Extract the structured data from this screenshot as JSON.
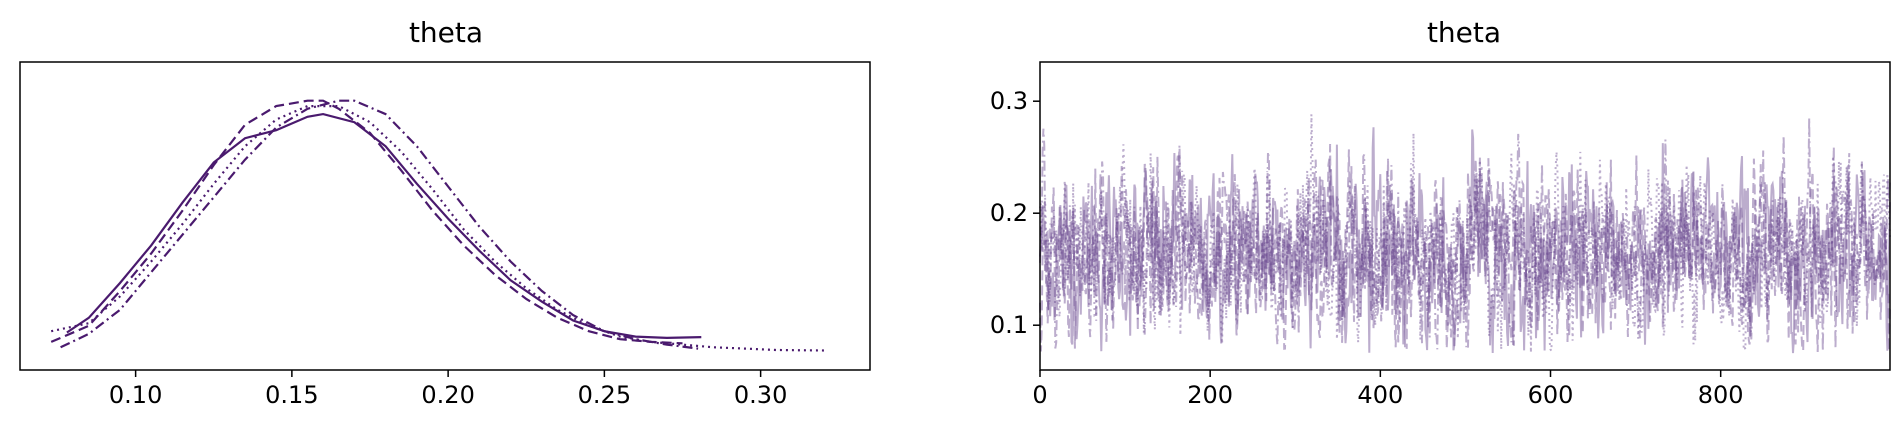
{
  "chart_data": [
    {
      "type": "line",
      "title": "theta",
      "xlabel": "",
      "ylabel": "",
      "xlim": [
        0.063,
        0.335
      ],
      "x_ticks": [
        0.1,
        0.15,
        0.2,
        0.25,
        0.3
      ],
      "x_tick_labels": [
        "0.10",
        "0.15",
        "0.20",
        "0.25",
        "0.30"
      ],
      "y_ticks": [],
      "grid": false,
      "color": "#4a1a6e",
      "series": [
        {
          "linestyle": "solid",
          "x": [
            0.078,
            0.085,
            0.095,
            0.105,
            0.115,
            0.125,
            0.135,
            0.145,
            0.155,
            0.16,
            0.17,
            0.18,
            0.19,
            0.2,
            0.21,
            0.22,
            0.23,
            0.24,
            0.25,
            0.26,
            0.27,
            0.281
          ],
          "y": [
            0.095,
            0.15,
            0.28,
            0.42,
            0.58,
            0.73,
            0.82,
            0.85,
            0.9,
            0.91,
            0.88,
            0.79,
            0.65,
            0.52,
            0.4,
            0.29,
            0.21,
            0.14,
            0.1,
            0.08,
            0.075,
            0.078
          ]
        },
        {
          "linestyle": "dashed",
          "x": [
            0.073,
            0.085,
            0.095,
            0.105,
            0.115,
            0.125,
            0.135,
            0.145,
            0.155,
            0.16,
            0.165,
            0.175,
            0.185,
            0.195,
            0.205,
            0.215,
            0.225,
            0.235,
            0.245,
            0.255,
            0.265,
            0.275
          ],
          "y": [
            0.06,
            0.12,
            0.25,
            0.39,
            0.55,
            0.72,
            0.87,
            0.94,
            0.96,
            0.96,
            0.93,
            0.84,
            0.7,
            0.55,
            0.42,
            0.31,
            0.22,
            0.15,
            0.1,
            0.07,
            0.06,
            0.055
          ]
        },
        {
          "linestyle": "dotted",
          "x": [
            0.073,
            0.085,
            0.095,
            0.105,
            0.115,
            0.125,
            0.135,
            0.145,
            0.155,
            0.165,
            0.175,
            0.185,
            0.195,
            0.205,
            0.215,
            0.225,
            0.235,
            0.245,
            0.255,
            0.265,
            0.275,
            0.285,
            0.295,
            0.305,
            0.321
          ],
          "y": [
            0.1,
            0.13,
            0.23,
            0.36,
            0.5,
            0.65,
            0.79,
            0.89,
            0.94,
            0.94,
            0.88,
            0.77,
            0.63,
            0.48,
            0.36,
            0.26,
            0.18,
            0.12,
            0.08,
            0.06,
            0.05,
            0.04,
            0.035,
            0.03,
            0.028
          ]
        },
        {
          "linestyle": "dashdot",
          "x": [
            0.076,
            0.085,
            0.095,
            0.105,
            0.115,
            0.125,
            0.135,
            0.145,
            0.155,
            0.165,
            0.17,
            0.18,
            0.19,
            0.2,
            0.21,
            0.22,
            0.23,
            0.24,
            0.25,
            0.26,
            0.27,
            0.28
          ],
          "y": [
            0.04,
            0.09,
            0.18,
            0.32,
            0.46,
            0.6,
            0.74,
            0.86,
            0.93,
            0.96,
            0.96,
            0.91,
            0.79,
            0.64,
            0.49,
            0.36,
            0.25,
            0.16,
            0.1,
            0.07,
            0.05,
            0.035
          ]
        }
      ]
    },
    {
      "type": "line",
      "title": "theta",
      "xlabel": "",
      "ylabel": "",
      "xlim": [
        0,
        999
      ],
      "ylim": [
        0.06,
        0.335
      ],
      "x_ticks": [
        0,
        200,
        400,
        600,
        800
      ],
      "x_tick_labels": [
        "0",
        "200",
        "400",
        "600",
        "800"
      ],
      "y_ticks": [
        0.1,
        0.2,
        0.3
      ],
      "y_tick_labels": [
        "0.1",
        "0.2",
        "0.3"
      ],
      "grid": false,
      "color": "#6a4a90",
      "draws_per_chain": 1000,
      "series": [
        {
          "linestyle": "solid",
          "x": [
            0,
            100,
            200,
            300,
            400,
            500,
            600,
            700,
            800,
            900,
            999
          ],
          "y": [
            0.165,
            0.163,
            0.168,
            0.162,
            0.165,
            0.16,
            0.166,
            0.162,
            0.167,
            0.161,
            0.165
          ]
        },
        {
          "linestyle": "dashed",
          "x": [
            0,
            100,
            200,
            300,
            400,
            500,
            600,
            700,
            800,
            900,
            999
          ],
          "y": [
            0.16,
            0.164,
            0.158,
            0.163,
            0.161,
            0.165,
            0.159,
            0.163,
            0.16,
            0.164,
            0.162
          ]
        },
        {
          "linestyle": "dotted",
          "x": [
            0,
            100,
            200,
            300,
            400,
            500,
            600,
            700,
            800,
            900,
            999
          ],
          "y": [
            0.162,
            0.16,
            0.165,
            0.161,
            0.166,
            0.162,
            0.161,
            0.165,
            0.162,
            0.16,
            0.163
          ]
        },
        {
          "linestyle": "dashdot",
          "x": [
            0,
            100,
            200,
            300,
            400,
            500,
            600,
            700,
            800,
            900,
            999
          ],
          "y": [
            0.168,
            0.165,
            0.162,
            0.167,
            0.163,
            0.166,
            0.164,
            0.161,
            0.166,
            0.163,
            0.167
          ]
        }
      ]
    }
  ]
}
